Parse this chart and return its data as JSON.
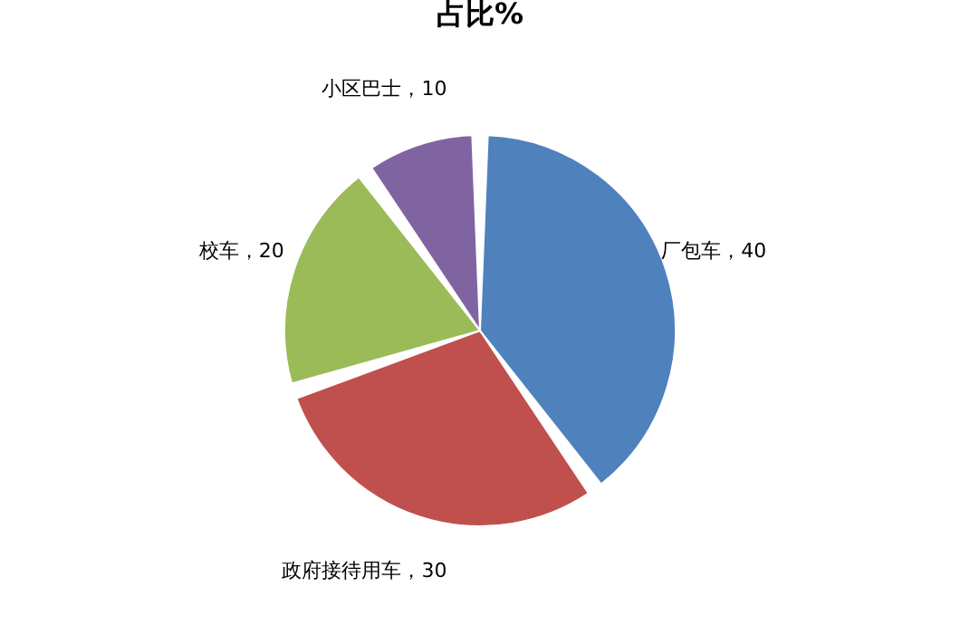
{
  "chart_data": {
    "type": "pie",
    "title": "占比%",
    "categories": [
      "厂包车",
      "政府接待用车",
      "校车",
      "小区巴士"
    ],
    "values": [
      40,
      30,
      20,
      10
    ],
    "colors": [
      "#4f81bd",
      "#c0504d",
      "#9bbb59",
      "#8064a2"
    ],
    "value_labels": [
      "，40",
      "，30",
      "，20",
      "，10"
    ],
    "legend": false
  }
}
